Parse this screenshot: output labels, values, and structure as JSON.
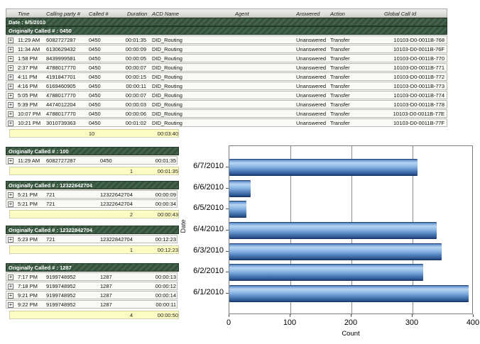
{
  "report": {
    "columns": [
      "Time",
      "Calling party #",
      "Called #",
      "Duration",
      "ACD Name",
      "Agent",
      "Answered",
      "Action",
      "Global Call Id"
    ],
    "date_header": "Date : 6/5/2010",
    "expand_icon": "+",
    "sections": [
      {
        "title": "Originally Called # : 0450",
        "wide": true,
        "rows": [
          {
            "time": "11:29 AM",
            "calling": "6082727287",
            "called": "0450",
            "duration": "00:01:35",
            "acd": "DID_Routing",
            "agent": "",
            "answered": "Unanswered",
            "action": "Transfer",
            "global_call_id": "10103-D0-0011B-768"
          },
          {
            "time": "11:34 AM",
            "calling": "6130629432",
            "called": "0450",
            "duration": "00:00:09",
            "acd": "DID_Routing",
            "agent": "",
            "answered": "Unanswered",
            "action": "Transfer",
            "global_call_id": "10103-D0-0011B-76F"
          },
          {
            "time": "1:58 PM",
            "calling": "8439999581",
            "called": "0450",
            "duration": "00:00:05",
            "acd": "DID_Routing",
            "agent": "",
            "answered": "Unanswered",
            "action": "Transfer",
            "global_call_id": "10103-D0-0011B-770"
          },
          {
            "time": "2:37 PM",
            "calling": "4788017770",
            "called": "0450",
            "duration": "00:00:07",
            "acd": "DID_Routing",
            "agent": "",
            "answered": "Unanswered",
            "action": "Transfer",
            "global_call_id": "10103-D0-0011B-771"
          },
          {
            "time": "4:11 PM",
            "calling": "4191847701",
            "called": "0450",
            "duration": "00:00:15",
            "acd": "DID_Routing",
            "agent": "",
            "answered": "Unanswered",
            "action": "Transfer",
            "global_call_id": "10103-D0-0011B-772"
          },
          {
            "time": "4:16 PM",
            "calling": "6169460905",
            "called": "0450",
            "duration": "00:00:11",
            "acd": "DID_Routing",
            "agent": "",
            "answered": "Unanswered",
            "action": "Transfer",
            "global_call_id": "10103-D0-0011B-773"
          },
          {
            "time": "5:05 PM",
            "calling": "4788017770",
            "called": "0450",
            "duration": "00:00:07",
            "acd": "DID_Routing",
            "agent": "",
            "answered": "Unanswered",
            "action": "Transfer",
            "global_call_id": "10103-D0-0011B-774"
          },
          {
            "time": "5:39 PM",
            "calling": "4474012204",
            "called": "0450",
            "duration": "00:00:03",
            "acd": "DID_Routing",
            "agent": "",
            "answered": "Unanswered",
            "action": "Transfer",
            "global_call_id": "10103-D0-0011B-778"
          },
          {
            "time": "10:07 PM",
            "calling": "4788017770",
            "called": "0450",
            "duration": "00:00:06",
            "acd": "DID_Routing",
            "agent": "",
            "answered": "Unanswered",
            "action": "Transfer",
            "global_call_id": "10103-D0-0011B-77E"
          },
          {
            "time": "10:21 PM",
            "calling": "3010739363",
            "called": "0450",
            "duration": "00:01:02",
            "acd": "DID_Routing",
            "agent": "",
            "answered": "Unanswered",
            "action": "Transfer",
            "global_call_id": "10103-D0-0011B-77F"
          }
        ],
        "summary": {
          "count": "10",
          "duration": "00:03:40"
        }
      },
      {
        "title": "Originally Called # : 100",
        "wide": false,
        "rows": [
          {
            "time": "11:29 AM",
            "calling": "6082727287",
            "called": "0450",
            "duration": "00:01:35"
          }
        ],
        "summary": {
          "count": "1",
          "duration": "00:01:35"
        }
      },
      {
        "title": "Originally Called # : 12322642704",
        "wide": false,
        "rows": [
          {
            "time": "5:21 PM",
            "calling": "721",
            "called": "12322642704",
            "duration": "00:00:09"
          },
          {
            "time": "5:21 PM",
            "calling": "721",
            "called": "12322642704",
            "duration": "00:00:34"
          }
        ],
        "summary": {
          "count": "2",
          "duration": "00:00:43"
        }
      },
      {
        "title": "Originally Called # : 12322842704",
        "wide": false,
        "rows": [
          {
            "time": "5:23 PM",
            "calling": "721",
            "called": "12322842704",
            "duration": "00:12:23"
          }
        ],
        "summary": {
          "count": "1",
          "duration": "00:12:23"
        }
      },
      {
        "title": "Originally Called # : 1287",
        "wide": false,
        "rows": [
          {
            "time": "7:17 PM",
            "calling": "9199748952",
            "called": "1287",
            "duration": "00:00:13"
          },
          {
            "time": "7:18 PM",
            "calling": "9199748952",
            "called": "1287",
            "duration": "00:00:12"
          },
          {
            "time": "9:21 PM",
            "calling": "9199748952",
            "called": "1287",
            "duration": "00:00:14"
          },
          {
            "time": "9:22 PM",
            "calling": "9199748952",
            "called": "1287",
            "duration": "00:00:11"
          }
        ],
        "summary": {
          "count": "4",
          "duration": "00:00:50"
        }
      }
    ]
  },
  "chart_data": {
    "type": "bar",
    "orientation": "horizontal",
    "categories": [
      "6/7/2010",
      "6/6/2010",
      "6/5/2010",
      "6/4/2010",
      "6/3/2010",
      "6/2/2010",
      "6/1/2010"
    ],
    "values": [
      308,
      35,
      28,
      340,
      348,
      318,
      392
    ],
    "title": "",
    "xlabel": "Count",
    "ylabel": "Date",
    "xlim": [
      0,
      400
    ],
    "xticks": [
      0,
      100,
      200,
      300,
      400
    ],
    "grid": true,
    "legend": false,
    "bar_color": "#6f9cd4"
  }
}
